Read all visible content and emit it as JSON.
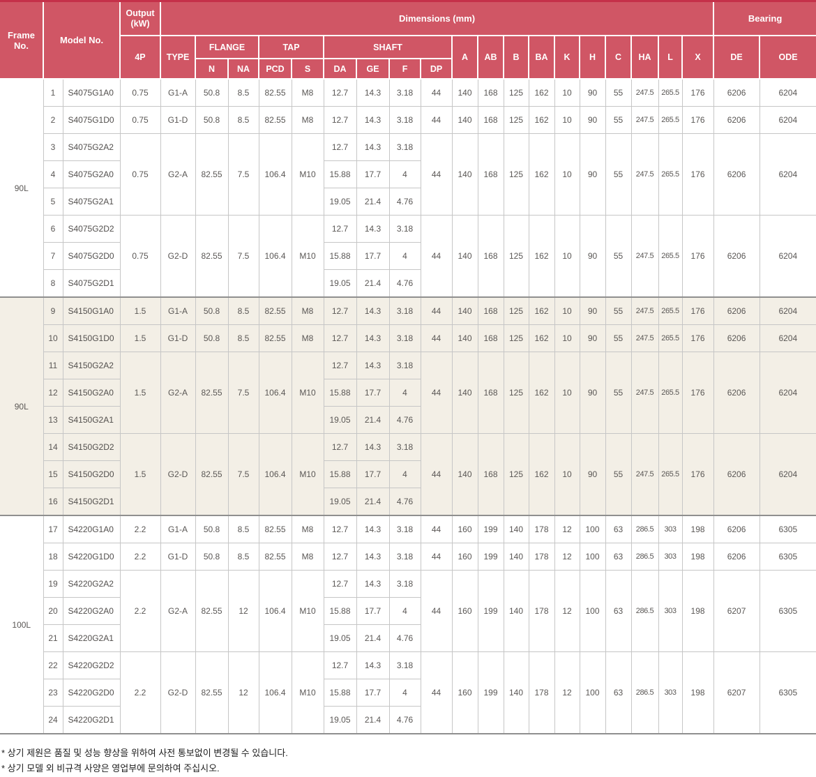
{
  "colors": {
    "header_bg": "#d05665",
    "top_bar": "#c53049",
    "alt_group_bg": "#f3efe6",
    "border_light": "#c6c6c6",
    "border_heavy": "#8f8f8f"
  },
  "header": {
    "frame_no": "Frame No.",
    "model_no": "Model No.",
    "output": "Output (kW)",
    "pole": "4P",
    "dimensions": "Dimensions (mm)",
    "bearing": "Bearing",
    "type": "TYPE",
    "flange": "FLANGE",
    "tap": "TAP",
    "shaft": "SHAFT",
    "flange_cols": [
      "N",
      "NA"
    ],
    "tap_cols": [
      "PCD",
      "S"
    ],
    "shaft_cols": [
      "DA",
      "GE",
      "F",
      "DP"
    ],
    "dim_cols": [
      "A",
      "AB",
      "B",
      "BA",
      "K",
      "H",
      "C",
      "HA",
      "L",
      "X"
    ],
    "bearing_cols": [
      "DE",
      "ODE"
    ]
  },
  "groups": [
    {
      "frame": "90L",
      "alt": false,
      "blocks": [
        {
          "kind": "single",
          "num": "1",
          "model": "S4075G1A0",
          "output": "0.75",
          "type": "G1-A",
          "n": "50.8",
          "na": "8.5",
          "pcd": "82.55",
          "s": "M8",
          "da": "12.7",
          "ge": "14.3",
          "f": "3.18",
          "dp": "44",
          "dims": [
            "140",
            "168",
            "125",
            "162",
            "10",
            "90",
            "55",
            "247.5",
            "265.5",
            "176"
          ],
          "de": "6206",
          "ode": "6204"
        },
        {
          "kind": "single",
          "num": "2",
          "model": "S4075G1D0",
          "output": "0.75",
          "type": "G1-D",
          "n": "50.8",
          "na": "8.5",
          "pcd": "82.55",
          "s": "M8",
          "da": "12.7",
          "ge": "14.3",
          "f": "3.18",
          "dp": "44",
          "dims": [
            "140",
            "168",
            "125",
            "162",
            "10",
            "90",
            "55",
            "247.5",
            "265.5",
            "176"
          ],
          "de": "6206",
          "ode": "6204"
        },
        {
          "kind": "merged",
          "output": "0.75",
          "type": "G2-A",
          "n": "82.55",
          "na": "7.5",
          "pcd": "106.4",
          "s": "M10",
          "dp": "44",
          "dims": [
            "140",
            "168",
            "125",
            "162",
            "10",
            "90",
            "55",
            "247.5",
            "265.5",
            "176"
          ],
          "de": "6206",
          "ode": "6204",
          "rows": [
            {
              "num": "3",
              "model": "S4075G2A2",
              "da": "12.7",
              "ge": "14.3",
              "f": "3.18"
            },
            {
              "num": "4",
              "model": "S4075G2A0",
              "da": "15.88",
              "ge": "17.7",
              "f": "4"
            },
            {
              "num": "5",
              "model": "S4075G2A1",
              "da": "19.05",
              "ge": "21.4",
              "f": "4.76"
            }
          ]
        },
        {
          "kind": "merged",
          "output": "0.75",
          "type": "G2-D",
          "n": "82.55",
          "na": "7.5",
          "pcd": "106.4",
          "s": "M10",
          "dp": "44",
          "dims": [
            "140",
            "168",
            "125",
            "162",
            "10",
            "90",
            "55",
            "247.5",
            "265.5",
            "176"
          ],
          "de": "6206",
          "ode": "6204",
          "rows": [
            {
              "num": "6",
              "model": "S4075G2D2",
              "da": "12.7",
              "ge": "14.3",
              "f": "3.18"
            },
            {
              "num": "7",
              "model": "S4075G2D0",
              "da": "15.88",
              "ge": "17.7",
              "f": "4"
            },
            {
              "num": "8",
              "model": "S4075G2D1",
              "da": "19.05",
              "ge": "21.4",
              "f": "4.76"
            }
          ]
        }
      ]
    },
    {
      "frame": "90L",
      "alt": true,
      "blocks": [
        {
          "kind": "single",
          "num": "9",
          "model": "S4150G1A0",
          "output": "1.5",
          "type": "G1-A",
          "n": "50.8",
          "na": "8.5",
          "pcd": "82.55",
          "s": "M8",
          "da": "12.7",
          "ge": "14.3",
          "f": "3.18",
          "dp": "44",
          "dims": [
            "140",
            "168",
            "125",
            "162",
            "10",
            "90",
            "55",
            "247.5",
            "265.5",
            "176"
          ],
          "de": "6206",
          "ode": "6204"
        },
        {
          "kind": "single",
          "num": "10",
          "model": "S4150G1D0",
          "output": "1.5",
          "type": "G1-D",
          "n": "50.8",
          "na": "8.5",
          "pcd": "82.55",
          "s": "M8",
          "da": "12.7",
          "ge": "14.3",
          "f": "3.18",
          "dp": "44",
          "dims": [
            "140",
            "168",
            "125",
            "162",
            "10",
            "90",
            "55",
            "247.5",
            "265.5",
            "176"
          ],
          "de": "6206",
          "ode": "6204"
        },
        {
          "kind": "merged",
          "output": "1.5",
          "type": "G2-A",
          "n": "82.55",
          "na": "7.5",
          "pcd": "106.4",
          "s": "M10",
          "dp": "44",
          "dims": [
            "140",
            "168",
            "125",
            "162",
            "10",
            "90",
            "55",
            "247.5",
            "265.5",
            "176"
          ],
          "de": "6206",
          "ode": "6204",
          "rows": [
            {
              "num": "11",
              "model": "S4150G2A2",
              "da": "12.7",
              "ge": "14.3",
              "f": "3.18"
            },
            {
              "num": "12",
              "model": "S4150G2A0",
              "da": "15.88",
              "ge": "17.7",
              "f": "4"
            },
            {
              "num": "13",
              "model": "S4150G2A1",
              "da": "19.05",
              "ge": "21.4",
              "f": "4.76"
            }
          ]
        },
        {
          "kind": "merged",
          "output": "1.5",
          "type": "G2-D",
          "n": "82.55",
          "na": "7.5",
          "pcd": "106.4",
          "s": "M10",
          "dp": "44",
          "dims": [
            "140",
            "168",
            "125",
            "162",
            "10",
            "90",
            "55",
            "247.5",
            "265.5",
            "176"
          ],
          "de": "6206",
          "ode": "6204",
          "rows": [
            {
              "num": "14",
              "model": "S4150G2D2",
              "da": "12.7",
              "ge": "14.3",
              "f": "3.18"
            },
            {
              "num": "15",
              "model": "S4150G2D0",
              "da": "15.88",
              "ge": "17.7",
              "f": "4"
            },
            {
              "num": "16",
              "model": "S4150G2D1",
              "da": "19.05",
              "ge": "21.4",
              "f": "4.76"
            }
          ]
        }
      ]
    },
    {
      "frame": "100L",
      "alt": false,
      "blocks": [
        {
          "kind": "single",
          "num": "17",
          "model": "S4220G1A0",
          "output": "2.2",
          "type": "G1-A",
          "n": "50.8",
          "na": "8.5",
          "pcd": "82.55",
          "s": "M8",
          "da": "12.7",
          "ge": "14.3",
          "f": "3.18",
          "dp": "44",
          "dims": [
            "160",
            "199",
            "140",
            "178",
            "12",
            "100",
            "63",
            "286.5",
            "303",
            "198"
          ],
          "de": "6206",
          "ode": "6305"
        },
        {
          "kind": "single",
          "num": "18",
          "model": "S4220G1D0",
          "output": "2.2",
          "type": "G1-D",
          "n": "50.8",
          "na": "8.5",
          "pcd": "82.55",
          "s": "M8",
          "da": "12.7",
          "ge": "14.3",
          "f": "3.18",
          "dp": "44",
          "dims": [
            "160",
            "199",
            "140",
            "178",
            "12",
            "100",
            "63",
            "286.5",
            "303",
            "198"
          ],
          "de": "6206",
          "ode": "6305"
        },
        {
          "kind": "merged",
          "output": "2.2",
          "type": "G2-A",
          "n": "82.55",
          "na": "12",
          "pcd": "106.4",
          "s": "M10",
          "dp": "44",
          "dims": [
            "160",
            "199",
            "140",
            "178",
            "12",
            "100",
            "63",
            "286.5",
            "303",
            "198"
          ],
          "de": "6207",
          "ode": "6305",
          "rows": [
            {
              "num": "19",
              "model": "S4220G2A2",
              "da": "12.7",
              "ge": "14.3",
              "f": "3.18"
            },
            {
              "num": "20",
              "model": "S4220G2A0",
              "da": "15.88",
              "ge": "17.7",
              "f": "4"
            },
            {
              "num": "21",
              "model": "S4220G2A1",
              "da": "19.05",
              "ge": "21.4",
              "f": "4.76"
            }
          ]
        },
        {
          "kind": "merged",
          "output": "2.2",
          "type": "G2-D",
          "n": "82.55",
          "na": "12",
          "pcd": "106.4",
          "s": "M10",
          "dp": "44",
          "dims": [
            "160",
            "199",
            "140",
            "178",
            "12",
            "100",
            "63",
            "286.5",
            "303",
            "198"
          ],
          "de": "6207",
          "ode": "6305",
          "rows": [
            {
              "num": "22",
              "model": "S4220G2D2",
              "da": "12.7",
              "ge": "14.3",
              "f": "3.18"
            },
            {
              "num": "23",
              "model": "S4220G2D0",
              "da": "15.88",
              "ge": "17.7",
              "f": "4"
            },
            {
              "num": "24",
              "model": "S4220G2D1",
              "da": "19.05",
              "ge": "21.4",
              "f": "4.76"
            }
          ]
        }
      ]
    }
  ],
  "footnotes": [
    "* 상기 제원은 품질 및 성능 향상을 위하여 사전 통보없이 변경될 수 있습니다.",
    "* 상기 모델 외 비규격 사양은 영업부에 문의하여 주십시오."
  ]
}
